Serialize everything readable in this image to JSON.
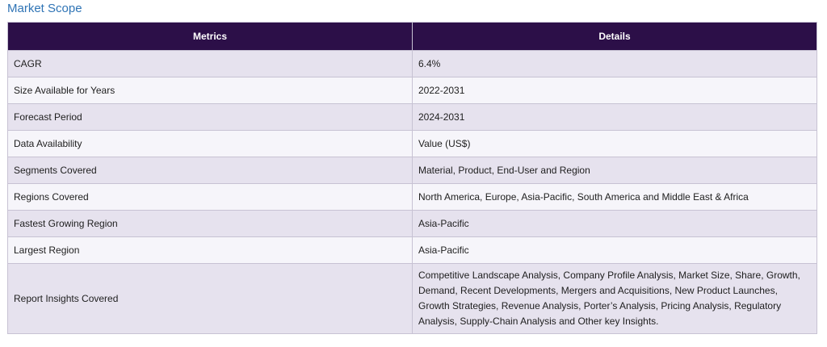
{
  "section": {
    "title": "Market Scope"
  },
  "table": {
    "headers": [
      "Metrics",
      "Details"
    ],
    "rows": [
      {
        "metric": "CAGR",
        "details": "6.4%"
      },
      {
        "metric": "Size Available for Years",
        "details": "2022-2031"
      },
      {
        "metric": "Forecast Period",
        "details": "2024-2031"
      },
      {
        "metric": "Data Availability",
        "details": "Value (US$)"
      },
      {
        "metric": "Segments Covered",
        "details": "Material, Product, End-User and Region"
      },
      {
        "metric": "Regions Covered",
        "details": "North America, Europe, Asia-Pacific, South America and Middle East & Africa"
      },
      {
        "metric": "Fastest Growing Region",
        "details": "Asia-Pacific"
      },
      {
        "metric": "Largest Region",
        "details": "Asia-Pacific"
      },
      {
        "metric": "Report Insights Covered",
        "details": "Competitive Landscape Analysis, Company Profile Analysis, Market Size, Share, Growth, Demand, Recent Developments, Mergers and Acquisitions, New Product Launches, Growth Strategies, Revenue Analysis, Porter’s Analysis, Pricing Analysis, Regulatory Analysis, Supply-Chain Analysis and Other key Insights."
      }
    ]
  },
  "colors": {
    "title": "#2f74b5",
    "header_bg": "#2c0f48",
    "row_odd": "#e6e2ee",
    "row_even": "#f6f5fa",
    "border": "#c7c2d3"
  }
}
